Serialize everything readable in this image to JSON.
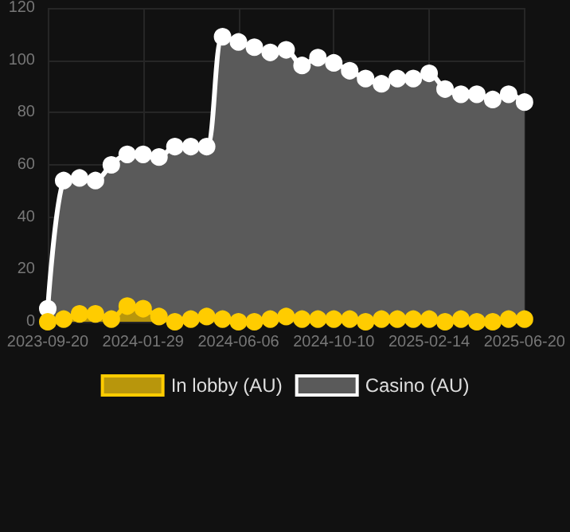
{
  "chart_data": {
    "type": "area",
    "categories": [
      "2023-09-20",
      null,
      null,
      null,
      null,
      null,
      "2024-01-29",
      null,
      null,
      null,
      null,
      null,
      "2024-06-06",
      null,
      null,
      null,
      null,
      null,
      "2024-10-10",
      null,
      null,
      null,
      null,
      null,
      "2025-02-14",
      null,
      null,
      null,
      null,
      null,
      "2025-06-20"
    ],
    "series": [
      {
        "name": "In lobby (AU)",
        "color": "#ffcc00",
        "values": [
          0,
          1,
          3,
          3,
          1,
          6,
          5,
          2,
          0,
          1,
          2,
          1,
          0,
          0,
          1,
          2,
          1,
          1,
          1,
          1,
          0,
          1,
          1,
          1,
          1,
          0,
          1,
          0,
          0,
          1,
          1
        ]
      },
      {
        "name": "Casino (AU)",
        "color": "#ffffff",
        "values": [
          5,
          54,
          55,
          54,
          60,
          64,
          64,
          63,
          67,
          67,
          67,
          109,
          107,
          105,
          103,
          104,
          98,
          101,
          99,
          96,
          93,
          91,
          93,
          93,
          95,
          89,
          87,
          87,
          85,
          87,
          84
        ]
      }
    ],
    "ylim": [
      0,
      120
    ],
    "yticks": [
      0,
      20,
      40,
      60,
      80,
      100,
      120
    ],
    "grid": true,
    "legend": "bottom",
    "marker": "circle"
  }
}
